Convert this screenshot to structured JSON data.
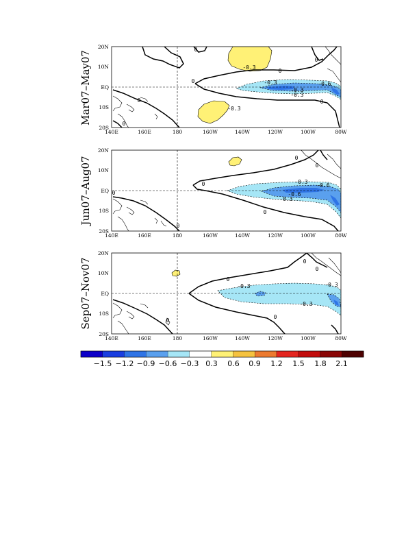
{
  "chart_data": [
    {
      "type": "heatmap",
      "title": "Mar07–May07",
      "xticks": [
        "140E",
        "160E",
        "180",
        "160W",
        "140W",
        "120W",
        "100W",
        "80W"
      ],
      "yticks": [
        "20N",
        "10N",
        "EQ",
        "10S",
        "20S"
      ],
      "xlim": [
        "140E",
        "80W"
      ],
      "ylim": [
        "20S",
        "20N"
      ],
      "contour_labels": [
        "-0.3",
        "0",
        "0",
        "-0.3",
        "-0.6",
        "-0.3",
        "-0.3",
        "0",
        "0",
        "0",
        "-0.3",
        "0",
        "0"
      ]
    },
    {
      "type": "heatmap",
      "title": "Jun07–Aug07",
      "xticks": [
        "140E",
        "160E",
        "180",
        "160W",
        "140W",
        "120W",
        "100W",
        "80W"
      ],
      "yticks": [
        "20N",
        "10N",
        "EQ",
        "10S",
        "20S"
      ],
      "xlim": [
        "140E",
        "80W"
      ],
      "ylim": [
        "20S",
        "20N"
      ],
      "contour_labels": [
        "0",
        "-0.3",
        "-0.6",
        "-0.6",
        "-0.3",
        "0",
        "0",
        "0",
        "0",
        "0"
      ]
    },
    {
      "type": "heatmap",
      "title": "Sep07–Nov07",
      "xticks": [
        "140E",
        "160E",
        "180",
        "160W",
        "140W",
        "120W",
        "100W",
        "80W"
      ],
      "yticks": [
        "20N",
        "10N",
        "EQ",
        "10S",
        "20S"
      ],
      "xlim": [
        "140E",
        "80W"
      ],
      "ylim": [
        "20S",
        "20N"
      ],
      "contour_labels": [
        "0",
        "-0.3",
        "-0.3",
        "-0.3",
        "0",
        "0",
        "0",
        "0"
      ]
    }
  ],
  "colorbar": {
    "colors": [
      "#0d00c8",
      "#1a3ee0",
      "#2f74e6",
      "#5aa0ee",
      "#a6e6f6",
      "#ffffff",
      "#fff176",
      "#f5c23f",
      "#ec7a2f",
      "#e4251f",
      "#c20c0c",
      "#8a0606",
      "#4e0202"
    ],
    "labels": [
      "−1.5",
      "−1.2",
      "−0.9",
      "−0.6",
      "−0.3",
      "0.3",
      "0.6",
      "0.9",
      "1.2",
      "1.5",
      "1.8",
      "2.1"
    ]
  }
}
